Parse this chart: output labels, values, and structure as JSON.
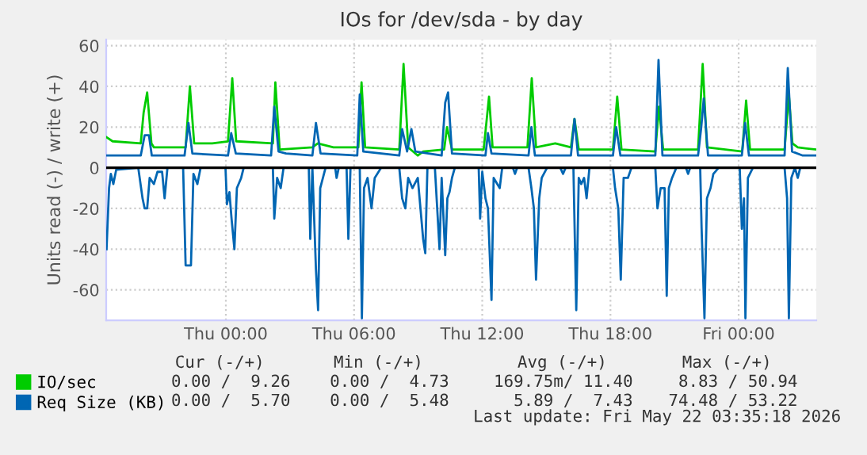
{
  "chart_data": {
    "type": "line",
    "title": "IOs for /dev/sda - by day",
    "ylabel": "Units read (-) / write (+)",
    "xlim": [
      "2026-05-20T18:24",
      "2026-05-22T03:38"
    ],
    "xticks": [
      {
        "value": "2026-05-21T00:00",
        "label": "Thu 00:00"
      },
      {
        "value": "2026-05-21T06:00",
        "label": "Thu 06:00"
      },
      {
        "value": "2026-05-21T12:00",
        "label": "Thu 12:00"
      },
      {
        "value": "2026-05-21T18:00",
        "label": "Thu 18:00"
      },
      {
        "value": "2026-05-22T00:00",
        "label": "Fri 00:00"
      }
    ],
    "ylim": [
      -75,
      63
    ],
    "yticks": [
      -60,
      -40,
      -20,
      0,
      20,
      40,
      60
    ],
    "grid": true,
    "legend": "bottom left",
    "ref_lines": [
      {
        "axis": "y",
        "value": 0,
        "color": "#000000"
      }
    ],
    "annotations": [
      "Cur (-/+)",
      "Min (-/+)",
      "Avg (-/+)",
      "Max (-/+)",
      "0.00 /  9.26",
      "0.00 /  4.73",
      "169.75m/ 11.40",
      "8.83 / 50.94",
      "0.00 /  5.70",
      "0.00 /  5.48",
      "5.89 /  7.43",
      "74.48 / 53.22",
      "Last update: Fri May 22 03:35:18 2026"
    ],
    "series": [
      {
        "name": "IO/sec",
        "color": "#00cc00",
        "x": [
          "2026-05-20T18:25",
          "2026-05-20T18:42",
          "2026-05-20T20:01",
          "2026-05-20T20:09",
          "2026-05-20T20:19",
          "2026-05-20T20:31",
          "2026-05-20T20:38",
          "2026-05-20T22:07",
          "2026-05-20T22:19",
          "2026-05-20T22:31",
          "2026-05-20T23:22",
          "2026-05-21T00:06",
          "2026-05-21T00:18",
          "2026-05-21T00:29",
          "2026-05-21T02:12",
          "2026-05-21T02:19",
          "2026-05-21T02:31",
          "2026-05-21T04:03",
          "2026-05-21T04:18",
          "2026-05-21T05:02",
          "2026-05-21T06:12",
          "2026-05-21T06:21",
          "2026-05-21T06:31",
          "2026-05-21T08:07",
          "2026-05-21T08:19",
          "2026-05-21T08:32",
          "2026-05-21T08:59",
          "2026-05-21T09:14",
          "2026-05-21T10:13",
          "2026-05-21T10:21",
          "2026-05-21T10:35",
          "2026-05-21T12:04",
          "2026-05-21T12:19",
          "2026-05-21T12:29",
          "2026-05-21T14:07",
          "2026-05-21T14:19",
          "2026-05-21T14:31",
          "2026-05-21T15:25",
          "2026-05-21T16:09",
          "2026-05-21T16:19",
          "2026-05-21T16:31",
          "2026-05-21T18:07",
          "2026-05-21T18:19",
          "2026-05-21T18:31",
          "2026-05-21T20:06",
          "2026-05-21T20:16",
          "2026-05-21T20:28",
          "2026-05-21T22:06",
          "2026-05-21T22:19",
          "2026-05-21T22:31",
          "2026-05-22T00:10",
          "2026-05-22T00:21",
          "2026-05-22T00:32",
          "2026-05-22T02:09",
          "2026-05-22T02:21",
          "2026-05-22T02:31",
          "2026-05-22T02:46",
          "2026-05-22T03:35"
        ],
        "values": [
          15,
          13,
          12,
          27,
          37,
          12,
          10,
          10,
          40,
          12,
          12,
          13,
          44,
          13,
          12,
          42,
          9,
          10,
          12,
          10,
          10,
          42,
          10,
          9,
          51,
          10,
          6,
          8,
          9,
          20,
          9,
          9,
          35,
          10,
          10,
          44,
          10,
          12,
          10,
          24,
          9,
          9,
          35,
          9,
          8,
          30,
          9,
          9,
          51,
          10,
          8,
          33,
          9,
          9,
          36,
          12,
          10,
          9
        ]
      },
      {
        "name": "Req Size (KB)",
        "color": "#0066b3",
        "x": [
          "2026-05-20T18:25",
          "2026-05-20T20:01",
          "2026-05-20T20:12",
          "2026-05-20T20:24",
          "2026-05-20T20:32",
          "2026-05-20T22:04",
          "2026-05-20T22:15",
          "2026-05-20T22:26",
          "2026-05-21T00:06",
          "2026-05-21T00:15",
          "2026-05-21T00:28",
          "2026-05-21T02:07",
          "2026-05-21T02:16",
          "2026-05-21T02:28",
          "2026-05-21T02:49",
          "2026-05-21T04:03",
          "2026-05-21T04:13",
          "2026-05-21T04:26",
          "2026-05-21T06:09",
          "2026-05-21T06:16",
          "2026-05-21T06:26",
          "2026-05-21T08:07",
          "2026-05-21T08:15",
          "2026-05-21T08:29",
          "2026-05-21T08:41",
          "2026-05-21T08:52",
          "2026-05-21T10:06",
          "2026-05-21T10:16",
          "2026-05-21T10:24",
          "2026-05-21T10:35",
          "2026-05-21T12:09",
          "2026-05-21T12:16",
          "2026-05-21T12:26",
          "2026-05-21T14:10",
          "2026-05-21T14:18",
          "2026-05-21T14:28",
          "2026-05-21T16:09",
          "2026-05-21T16:19",
          "2026-05-21T16:29",
          "2026-05-21T18:07",
          "2026-05-21T18:16",
          "2026-05-21T18:28",
          "2026-05-21T20:06",
          "2026-05-21T20:15",
          "2026-05-21T20:26",
          "2026-05-21T22:06",
          "2026-05-21T22:15",
          "2026-05-21T22:22",
          "2026-05-21T22:34",
          "2026-05-22T00:09",
          "2026-05-22T00:18",
          "2026-05-22T00:29",
          "2026-05-22T02:09",
          "2026-05-22T02:18",
          "2026-05-22T02:30",
          "2026-05-22T03:00",
          "2026-05-22T03:35"
        ],
        "values": [
          6,
          6,
          16,
          16,
          6,
          6,
          22,
          7,
          6,
          17,
          7,
          6,
          30,
          8,
          7,
          6,
          22,
          7,
          6,
          36,
          8,
          6,
          19,
          8,
          19,
          8,
          6,
          32,
          37,
          7,
          6,
          17,
          7,
          6,
          20,
          6,
          6,
          24,
          6,
          6,
          20,
          6,
          6,
          53,
          6,
          6,
          20,
          34,
          6,
          6,
          22,
          6,
          6,
          49,
          8,
          6,
          6
        ]
      },
      {
        "color": "#0066b3",
        "x": [
          "2026-05-20T18:25",
          "2026-05-20T18:32",
          "2026-05-20T18:37",
          "2026-05-20T18:44",
          "2026-05-20T18:52",
          "2026-05-20T19:54",
          "2026-05-20T20:06",
          "2026-05-20T20:12",
          "2026-05-20T20:19",
          "2026-05-20T20:26",
          "2026-05-20T20:38",
          "2026-05-20T20:48",
          "2026-05-20T21:01",
          "2026-05-20T21:08",
          "2026-05-20T21:16",
          "2026-05-20T22:00",
          "2026-05-20T22:07",
          "2026-05-20T22:16",
          "2026-05-20T22:22",
          "2026-05-20T22:29",
          "2026-05-20T22:40",
          "2026-05-20T22:49",
          "2026-05-20T23:59",
          "2026-05-21T00:03",
          "2026-05-21T00:10",
          "2026-05-21T00:16",
          "2026-05-21T00:24",
          "2026-05-21T00:31",
          "2026-05-21T00:43",
          "2026-05-21T00:50",
          "2026-05-21T02:12",
          "2026-05-21T02:16",
          "2026-05-21T02:24",
          "2026-05-21T02:34",
          "2026-05-21T02:42",
          "2026-05-21T03:53",
          "2026-05-21T03:57",
          "2026-05-21T04:03",
          "2026-05-21T04:13",
          "2026-05-21T04:19",
          "2026-05-21T04:25",
          "2026-05-21T04:40",
          "2026-05-21T05:07",
          "2026-05-21T05:11",
          "2026-05-21T05:17",
          "2026-05-21T05:39",
          "2026-05-21T05:44",
          "2026-05-21T05:50",
          "2026-05-21T06:16",
          "2026-05-21T06:22",
          "2026-05-21T06:28",
          "2026-05-21T06:38",
          "2026-05-21T06:49",
          "2026-05-21T06:58",
          "2026-05-21T07:16",
          "2026-05-21T08:07",
          "2026-05-21T08:15",
          "2026-05-21T08:24",
          "2026-05-21T08:32",
          "2026-05-21T08:44",
          "2026-05-21T08:59",
          "2026-05-21T09:14",
          "2026-05-21T09:20",
          "2026-05-21T09:26",
          "2026-05-21T09:47",
          "2026-05-21T10:00",
          "2026-05-21T10:06",
          "2026-05-21T10:10",
          "2026-05-21T10:16",
          "2026-05-21T10:22",
          "2026-05-21T10:28",
          "2026-05-21T10:35",
          "2026-05-21T10:43",
          "2026-05-21T11:50",
          "2026-05-21T11:54",
          "2026-05-21T12:00",
          "2026-05-21T12:09",
          "2026-05-21T12:16",
          "2026-05-21T12:26",
          "2026-05-21T12:32",
          "2026-05-21T12:49",
          "2026-05-21T12:56",
          "2026-05-21T13:26",
          "2026-05-21T13:32",
          "2026-05-21T13:38",
          "2026-05-21T14:10",
          "2026-05-21T14:18",
          "2026-05-21T14:25",
          "2026-05-21T14:31",
          "2026-05-21T14:40",
          "2026-05-21T14:47",
          "2026-05-21T15:02",
          "2026-05-21T15:39",
          "2026-05-21T15:47",
          "2026-05-21T15:54",
          "2026-05-21T16:16",
          "2026-05-21T16:24",
          "2026-05-21T16:31",
          "2026-05-21T16:38",
          "2026-05-21T16:46",
          "2026-05-21T16:53",
          "2026-05-21T17:01",
          "2026-05-21T18:07",
          "2026-05-21T18:13",
          "2026-05-21T18:22",
          "2026-05-21T18:29",
          "2026-05-21T18:37",
          "2026-05-21T18:49",
          "2026-05-21T18:59",
          "2026-05-21T20:06",
          "2026-05-21T20:12",
          "2026-05-21T20:21",
          "2026-05-21T20:32",
          "2026-05-21T20:38",
          "2026-05-21T20:44",
          "2026-05-21T20:53",
          "2026-05-21T21:05",
          "2026-05-21T21:32",
          "2026-05-21T21:38",
          "2026-05-21T21:44",
          "2026-05-21T22:12",
          "2026-05-21T22:16",
          "2026-05-21T22:24",
          "2026-05-21T22:31",
          "2026-05-21T22:41",
          "2026-05-21T22:49",
          "2026-05-21T23:04",
          "2026-05-22T00:03",
          "2026-05-22T00:09",
          "2026-05-22T00:15",
          "2026-05-22T00:19",
          "2026-05-22T00:26",
          "2026-05-22T00:40",
          "2026-05-22T02:09",
          "2026-05-22T02:16",
          "2026-05-22T02:21",
          "2026-05-22T02:28",
          "2026-05-22T02:38",
          "2026-05-22T02:46",
          "2026-05-22T02:53",
          "2026-05-22T03:35"
        ],
        "values": [
          -40,
          -10,
          -3,
          -8,
          -1,
          0,
          -15,
          -20,
          -20,
          -5,
          -8,
          -2,
          -2,
          -15,
          0,
          0,
          -48,
          -48,
          -48,
          -3,
          -8,
          0,
          0,
          -18,
          -12,
          -25,
          -40,
          -10,
          -5,
          0,
          0,
          -25,
          -5,
          -10,
          0,
          0,
          -35,
          0,
          -50,
          -70,
          -10,
          0,
          0,
          -5,
          0,
          0,
          -35,
          0,
          0,
          -74,
          -10,
          -5,
          -20,
          -5,
          0,
          0,
          -15,
          -20,
          -5,
          -10,
          -5,
          -35,
          -42,
          0,
          0,
          -40,
          -5,
          -20,
          -43,
          -15,
          -12,
          -5,
          0,
          0,
          -25,
          -2,
          -15,
          -20,
          -65,
          -5,
          -10,
          0,
          0,
          -3,
          0,
          0,
          -10,
          -20,
          -55,
          -15,
          -5,
          0,
          0,
          -3,
          0,
          0,
          -70,
          -5,
          -8,
          -5,
          -15,
          0,
          0,
          -10,
          -20,
          -55,
          -5,
          -5,
          0,
          0,
          -20,
          -10,
          -10,
          -63,
          -10,
          -5,
          0,
          0,
          -3,
          0,
          0,
          -30,
          -74,
          -15,
          -10,
          -3,
          0,
          0,
          -30,
          -15,
          -74,
          -5,
          0,
          0,
          -15,
          -74,
          -5,
          0,
          -5,
          0,
          0
        ]
      }
    ]
  }
}
